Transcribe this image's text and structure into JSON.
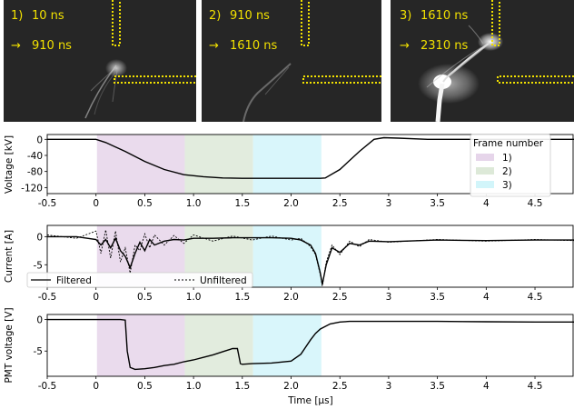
{
  "frames": [
    {
      "number_label": "1)",
      "start": "10 ns",
      "end": "910 ns",
      "arrow": "→"
    },
    {
      "number_label": "2)",
      "start": "910 ns",
      "end": "1610 ns",
      "arrow": "→"
    },
    {
      "number_label": "3)",
      "start": "1610 ns",
      "end": "2310 ns",
      "arrow": "→"
    }
  ],
  "colors": {
    "frame_bg": "#262626",
    "marker": "#f2e100",
    "band1": "#e6d5ea",
    "band2": "#dde9d8",
    "band3": "#d2f5fa",
    "trace": "#000000"
  },
  "legend_frames": {
    "title": "Frame number",
    "entries": [
      "1)",
      "2)",
      "3)"
    ]
  },
  "legend_current": {
    "entries": [
      "Filtered",
      "Unfiltered"
    ]
  },
  "chart_data": [
    {
      "type": "line",
      "ylabel": "Voltage [kV]",
      "xlim": [
        -0.5,
        4.9
      ],
      "ylim": [
        -135,
        12
      ],
      "x_ticks": [
        "-0.5",
        "0",
        "0.5",
        "1.0",
        "1.5",
        "2.0",
        "2.5",
        "3",
        "3.5",
        "4",
        "4.5"
      ],
      "y_ticks": [
        "0",
        "-40",
        "-80",
        "-120"
      ],
      "bands": [
        [
          0.01,
          0.91
        ],
        [
          0.91,
          1.61
        ],
        [
          1.61,
          2.31
        ]
      ],
      "series": [
        {
          "style": "solid",
          "x": [
            -0.5,
            0.0,
            0.1,
            0.3,
            0.5,
            0.7,
            0.9,
            1.1,
            1.3,
            1.5,
            2.3,
            2.35,
            2.5,
            2.7,
            2.85,
            2.95,
            3.1,
            3.4,
            3.7,
            4.0,
            4.5,
            4.9
          ],
          "y": [
            0,
            0,
            -8,
            -30,
            -55,
            -75,
            -88,
            -93,
            -96,
            -97,
            -97,
            -96,
            -75,
            -30,
            0,
            4,
            3,
            0,
            0,
            0,
            0,
            0
          ]
        }
      ]
    },
    {
      "type": "line",
      "ylabel": "Current [A]",
      "xlim": [
        -0.5,
        4.9
      ],
      "ylim": [
        -9,
        2
      ],
      "x_ticks": [
        "-0.5",
        "0",
        "0.5",
        "1.0",
        "1.5",
        "2.0",
        "2.5",
        "3",
        "3.5",
        "4",
        "4.5"
      ],
      "y_ticks": [
        "0",
        "-5"
      ],
      "bands": [
        [
          0.01,
          0.91
        ],
        [
          0.91,
          1.61
        ],
        [
          1.61,
          2.31
        ]
      ],
      "series": [
        {
          "name": "Filtered",
          "style": "solid",
          "x": [
            -0.5,
            -0.2,
            0.0,
            0.05,
            0.1,
            0.15,
            0.2,
            0.25,
            0.3,
            0.35,
            0.4,
            0.45,
            0.5,
            0.55,
            0.6,
            0.7,
            0.8,
            0.9,
            1.0,
            1.2,
            1.4,
            1.6,
            1.8,
            2.0,
            2.1,
            2.2,
            2.25,
            2.3,
            2.32,
            2.36,
            2.42,
            2.5,
            2.6,
            2.7,
            2.8,
            3.0,
            3.5,
            4.0,
            4.5,
            4.9
          ],
          "y": [
            0,
            0,
            -0.5,
            -1.5,
            -0.5,
            -2.0,
            -0.3,
            -2.5,
            -3.5,
            -5.5,
            -3.0,
            -1.0,
            -2.5,
            -0.5,
            -1.5,
            -0.8,
            -0.5,
            -0.6,
            -0.3,
            -0.3,
            -0.2,
            -0.2,
            -0.2,
            -0.3,
            -0.6,
            -1.5,
            -3.0,
            -6.5,
            -8.5,
            -5.0,
            -2.0,
            -2.8,
            -1.2,
            -1.5,
            -0.8,
            -0.9,
            -0.6,
            -0.7,
            -0.6,
            -0.6
          ]
        },
        {
          "name": "Unfiltered",
          "style": "dotted",
          "x": [
            -0.5,
            -0.2,
            0.0,
            0.05,
            0.1,
            0.15,
            0.2,
            0.25,
            0.3,
            0.35,
            0.4,
            0.45,
            0.5,
            0.55,
            0.6,
            0.7,
            0.8,
            0.9,
            1.0,
            1.2,
            1.4,
            1.6,
            1.8,
            2.0,
            2.1,
            2.2,
            2.25,
            2.3,
            2.32,
            2.36,
            2.42,
            2.5,
            2.6,
            2.7,
            2.8,
            3.0,
            3.5,
            4.0,
            4.5,
            4.9
          ],
          "y": [
            0.3,
            -0.3,
            1.0,
            -3.0,
            1.2,
            -3.8,
            1.0,
            -4.5,
            -2.0,
            -6.5,
            -1.5,
            -2.5,
            0.5,
            -2.0,
            0.3,
            -1.5,
            0.2,
            -1.2,
            0.3,
            -0.8,
            0.1,
            -0.6,
            0.1,
            -0.6,
            -0.3,
            -1.8,
            -3.2,
            -6.8,
            -8.8,
            -4.5,
            -1.5,
            -3.2,
            -0.8,
            -1.8,
            -0.5,
            -1.0,
            -0.5,
            -0.8,
            -0.5,
            -0.7
          ]
        }
      ]
    },
    {
      "type": "line",
      "xlabel": "Time [μs]",
      "ylabel": "PMT voltage [V]",
      "xlim": [
        -0.5,
        4.9
      ],
      "ylim": [
        -9,
        0.8
      ],
      "x_ticks": [
        "-0.5",
        "0",
        "0.5",
        "1.0",
        "1.5",
        "2.0",
        "2.5",
        "3",
        "3.5",
        "4",
        "4.5"
      ],
      "y_ticks": [
        "0",
        "-5"
      ],
      "bands": [
        [
          0.01,
          0.91
        ],
        [
          0.91,
          1.61
        ],
        [
          1.61,
          2.31
        ]
      ],
      "series": [
        {
          "style": "solid",
          "x": [
            -0.5,
            0.0,
            0.25,
            0.3,
            0.32,
            0.35,
            0.4,
            0.5,
            0.6,
            0.7,
            0.8,
            0.9,
            1.0,
            1.1,
            1.2,
            1.3,
            1.4,
            1.45,
            1.48,
            1.5,
            1.6,
            1.8,
            2.0,
            2.1,
            2.2,
            2.25,
            2.3,
            2.4,
            2.5,
            2.6,
            3.0,
            3.5,
            4.0,
            4.5,
            4.9
          ],
          "y": [
            0,
            0,
            0,
            -0.1,
            -5.0,
            -7.6,
            -7.9,
            -7.8,
            -7.6,
            -7.3,
            -7.1,
            -6.7,
            -6.4,
            -6.0,
            -5.6,
            -5.1,
            -4.6,
            -4.6,
            -7.0,
            -7.1,
            -7.0,
            -6.9,
            -6.6,
            -5.5,
            -3.2,
            -2.2,
            -1.5,
            -0.7,
            -0.4,
            -0.3,
            -0.3,
            -0.3,
            -0.35,
            -0.4,
            -0.4
          ]
        }
      ]
    }
  ]
}
